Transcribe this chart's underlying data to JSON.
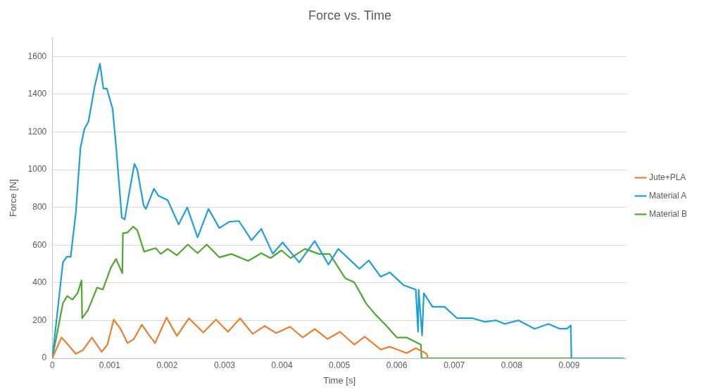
{
  "chart_data": {
    "type": "line",
    "title": "Force vs. Time",
    "xlabel": "Time [s]",
    "ylabel": "Force [N]",
    "xlim": [
      0,
      0.01
    ],
    "xticks": [
      0,
      0.001,
      0.002,
      0.003,
      0.004,
      0.005,
      0.006,
      0.007,
      0.008,
      0.009
    ],
    "ylim": [
      0,
      1700
    ],
    "yticks": [
      0,
      200,
      400,
      600,
      800,
      1000,
      1200,
      1400,
      1600
    ],
    "grid": "y",
    "legend": "right",
    "marker": "none",
    "line_style": "solid",
    "series": [
      {
        "name": "Jute+PLA",
        "color": "#ed7d31",
        "x": [
          0,
          0.00016,
          0.00025,
          0.00041,
          0.00053,
          0.00069,
          0.00086,
          0.00096,
          0.00107,
          0.00119,
          0.00131,
          0.00142,
          0.00156,
          0.00167,
          0.00179,
          0.00199,
          0.00217,
          0.00238,
          0.00263,
          0.00285,
          0.00306,
          0.00327,
          0.00349,
          0.0037,
          0.0039,
          0.00414,
          0.00436,
          0.00457,
          0.00479,
          0.00501,
          0.00526,
          0.00544,
          0.00572,
          0.00588,
          0.00617,
          0.00633,
          0.00646,
          0.00652,
          0.00654
        ],
        "values": [
          0,
          110,
          80,
          23,
          42,
          110,
          34,
          72,
          205,
          155,
          80,
          102,
          178,
          129,
          80,
          216,
          118,
          212,
          136,
          205,
          140,
          212,
          129,
          171,
          133,
          167,
          110,
          155,
          102,
          140,
          72,
          114,
          46,
          61,
          27,
          53,
          34,
          23,
          0
        ]
      },
      {
        "name": "Material A",
        "color": "#1f9fd8",
        "x": [
          0,
          0.000185,
          0.00025,
          0.00032,
          0.00041,
          0.00049,
          0.00056,
          0.00063,
          0.00074,
          0.00083,
          0.00089,
          0.00095,
          0.00105,
          0.00111,
          0.00121,
          0.00126,
          0.00136,
          0.00143,
          0.00148,
          0.00159,
          0.00163,
          0.00177,
          0.00185,
          0.00201,
          0.0022,
          0.00235,
          0.00253,
          0.00272,
          0.00291,
          0.00308,
          0.00325,
          0.00347,
          0.00364,
          0.00384,
          0.00401,
          0.0043,
          0.00457,
          0.00481,
          0.00498,
          0.00535,
          0.00551,
          0.00572,
          0.00588,
          0.00612,
          0.00633,
          0.00637,
          0.00638,
          0.00644,
          0.00647,
          0.00662,
          0.00683,
          0.00705,
          0.00732,
          0.00753,
          0.00773,
          0.00788,
          0.00812,
          0.0084,
          0.00864,
          0.00884,
          0.00896,
          0.00903,
          0.00904,
          0.00995
        ],
        "values": [
          0,
          508,
          538,
          538,
          773,
          1115,
          1217,
          1255,
          1445,
          1562,
          1430,
          1430,
          1323,
          1126,
          747,
          735,
          913,
          1031,
          1000,
          811,
          792,
          899,
          861,
          838,
          709,
          800,
          641,
          792,
          690,
          724,
          728,
          626,
          686,
          554,
          614,
          508,
          622,
          497,
          580,
          474,
          519,
          432,
          455,
          387,
          364,
          140,
          364,
          121,
          345,
          273,
          273,
          212,
          212,
          193,
          201,
          182,
          201,
          156,
          182,
          156,
          156,
          174,
          0,
          0
        ]
      },
      {
        "name": "Material B",
        "color": "#4ea72e",
        "x": [
          0,
          0.000185,
          0.00026,
          0.00035,
          0.00044,
          0.00051,
          0.00052,
          0.00062,
          0.00078,
          0.00088,
          0.00102,
          0.00111,
          0.00122,
          0.00123,
          0.00131,
          0.00141,
          0.00148,
          0.0016,
          0.0018,
          0.00189,
          0.00201,
          0.00217,
          0.00236,
          0.00253,
          0.00269,
          0.00291,
          0.00312,
          0.00341,
          0.00364,
          0.0038,
          0.00399,
          0.00415,
          0.0044,
          0.00464,
          0.00483,
          0.0051,
          0.00526,
          0.00547,
          0.00563,
          0.0058,
          0.006,
          0.00617,
          0.00642,
          0.00643,
          0.00995
        ],
        "values": [
          0,
          292,
          330,
          311,
          345,
          413,
          212,
          254,
          375,
          364,
          481,
          527,
          451,
          663,
          667,
          698,
          679,
          565,
          584,
          553,
          580,
          546,
          603,
          557,
          603,
          535,
          553,
          516,
          557,
          531,
          572,
          531,
          580,
          553,
          553,
          425,
          402,
          288,
          231,
          178,
          110,
          110,
          72,
          0,
          0
        ]
      }
    ]
  }
}
